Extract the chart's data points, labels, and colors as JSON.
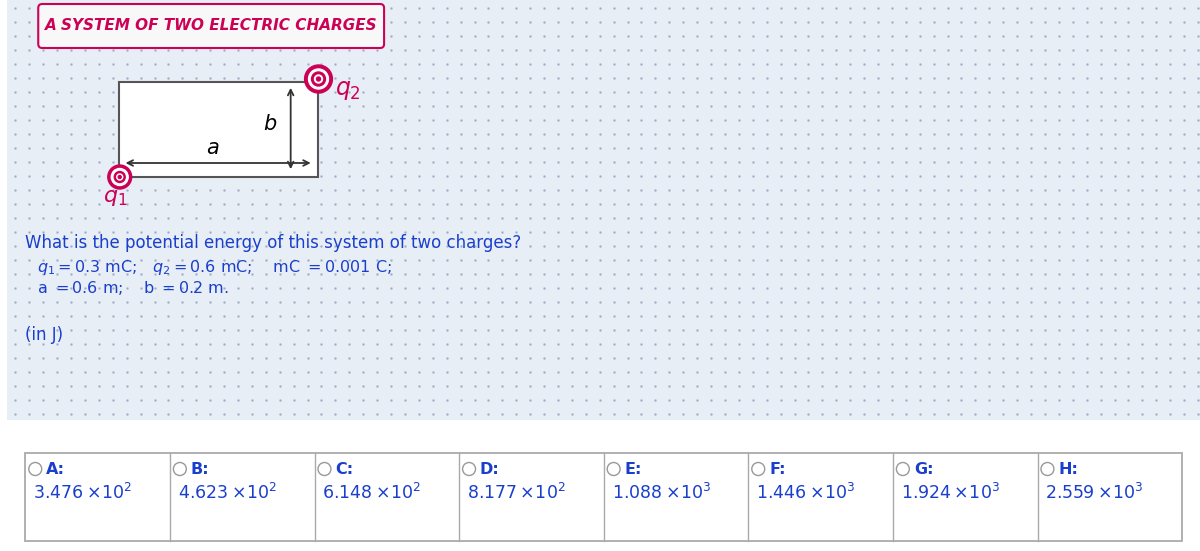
{
  "title": "A SYSTEM OF TWO ELECTRIC CHARGES",
  "title_color": "#cc0055",
  "question": "What is the potential energy of this system of two charges?",
  "params_line1_parts": [
    "q",
    "1",
    " = 0.3 mC;   ",
    "q",
    "2",
    " = 0.6 mC;    mC = 0.001 C;"
  ],
  "params_line2": "a = 0.6 m;    b = 0.2 m.",
  "unit_label": "(in J)",
  "text_color": "#1a3fcc",
  "options": [
    "A:",
    "B:",
    "C:",
    "D:",
    "E:",
    "F:",
    "G:",
    "H:"
  ],
  "values_base": [
    "3.476",
    "4.623",
    "6.148",
    "8.177",
    "1.088",
    "1.446",
    "1.924",
    "2.559"
  ],
  "values_exp": [
    "2",
    "2",
    "2",
    "2",
    "3",
    "3",
    "3",
    "3"
  ],
  "charge_color": "#cc0055",
  "rect_color": "#555555",
  "grid_dot_color": "#c0c8d8",
  "bg_grid_color": "#e8eef5",
  "table_border_color": "#aaaaaa",
  "title_box_color": "#cc0055",
  "title_bg": "#f5f5f5"
}
